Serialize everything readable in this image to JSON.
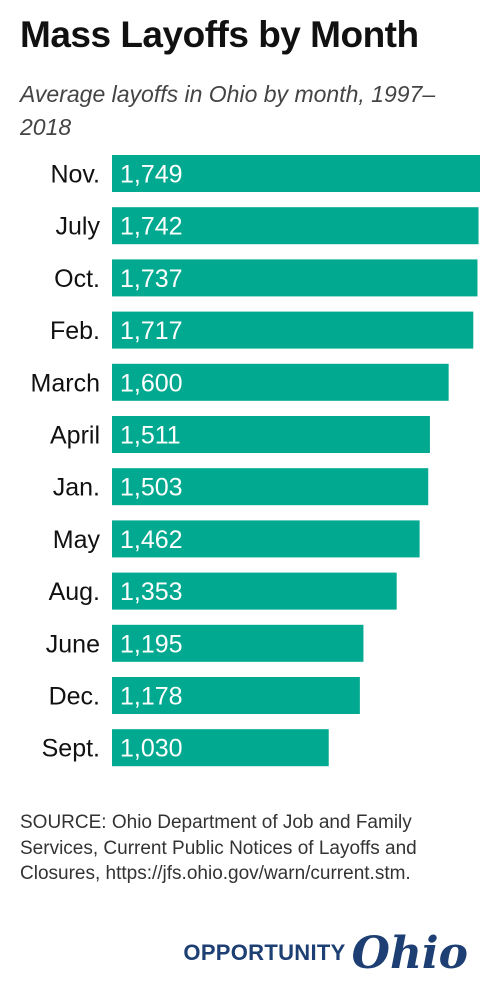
{
  "header": {
    "title": "Mass Layoffs by Month",
    "subtitle": "Average layoffs in Ohio by month, 1997–2018"
  },
  "chart_data": {
    "type": "bar",
    "orientation": "horizontal",
    "categories": [
      "Nov.",
      "July",
      "Oct.",
      "Feb.",
      "March",
      "April",
      "Jan.",
      "May",
      "Aug.",
      "June",
      "Dec.",
      "Sept."
    ],
    "values": [
      1749,
      1742,
      1737,
      1717,
      1600,
      1511,
      1503,
      1462,
      1353,
      1195,
      1178,
      1030
    ],
    "value_labels": [
      "1,749",
      "1,742",
      "1,737",
      "1,717",
      "1,600",
      "1,511",
      "1,503",
      "1,462",
      "1,353",
      "1,195",
      "1,178",
      "1,030"
    ],
    "title": "Mass Layoffs by Month",
    "subtitle": "Average layoffs in Ohio by month, 1997–2018",
    "xlabel": "",
    "ylabel": "",
    "xlim": [
      0,
      1749
    ],
    "grid": false,
    "legend": "none",
    "bar_color": "#00a98f",
    "value_label_color": "#ffffff",
    "value_label_position": "inside-left"
  },
  "footer": {
    "source": "SOURCE: Ohio Department of Job and Family Services, Current Public Notices of Layoffs and Closures, https://jfs.ohio.gov/warn/current.stm.",
    "brand_word": "OPPORTUNITY",
    "brand_script": "Ohio",
    "brand_color": "#1d3f73"
  }
}
